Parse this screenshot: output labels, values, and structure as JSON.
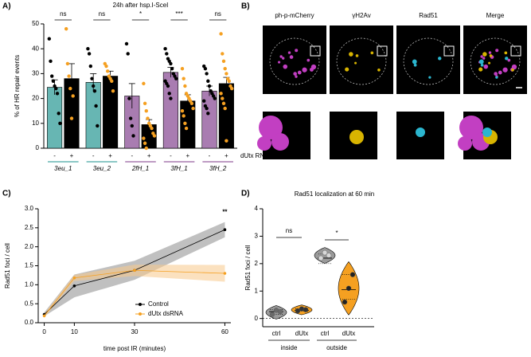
{
  "panel_labels": [
    "A)",
    "B)",
    "C)",
    "D)"
  ],
  "microscopy": {
    "channels": [
      {
        "label": "ph-p-mCherry",
        "color": "#c23fc2"
      },
      {
        "label": "γH2Av",
        "color": "#d8b400"
      },
      {
        "label": "Rad51",
        "color": "#2bb6cf"
      },
      {
        "label": "Merge",
        "color": "#333333"
      }
    ]
  },
  "chart_data": [
    {
      "type": "bar",
      "title": "24h after hsp.I-SceI",
      "y_label": "% of HR repair events",
      "categories": [
        "3eu_1",
        "3eu_2",
        "2fH_1",
        "3fH_1",
        "3fH_2"
      ],
      "series": [
        {
          "name": "-",
          "colors": [
            "#67b6b3",
            "#67b6b3",
            "#a97cb1",
            "#a97cb1",
            "#a97cb1"
          ],
          "point_color": "#000000",
          "values": [
            24.5,
            26.5,
            21,
            30.5,
            23
          ],
          "errors": [
            3,
            3.5,
            5,
            2,
            2
          ],
          "points": [
            [
              44,
              35,
              29,
              27,
              25,
              24,
              22,
              14,
              10
            ],
            [
              40,
              38,
              33,
              28,
              25,
              23,
              17,
              9
            ],
            [
              42,
              38,
              20,
              12,
              9,
              5
            ],
            [
              40,
              38,
              36,
              35,
              34,
              32,
              30,
              29,
              28,
              27,
              26,
              25,
              22,
              20
            ],
            [
              33,
              32,
              30,
              27,
              25,
              23,
              22,
              21,
              20,
              19,
              17,
              16,
              14
            ]
          ]
        },
        {
          "name": "+",
          "color": "#000000",
          "point_color": "#f5a021",
          "values": [
            28,
            29,
            9.5,
            19,
            26
          ],
          "errors": [
            6,
            2,
            2,
            2.5,
            2.5
          ],
          "points": [
            [
              48,
              34,
              29,
              24,
              12,
              21
            ],
            [
              34,
              33,
              31,
              29,
              28,
              27,
              23
            ],
            [
              26,
              18,
              15,
              12,
              10,
              9,
              8,
              6,
              5,
              4,
              2,
              0
            ],
            [
              32,
              28,
              25,
              22,
              21,
              20,
              19,
              18,
              16,
              15,
              13,
              10,
              8
            ],
            [
              46,
              38,
              35,
              32,
              30,
              28,
              27,
              25,
              24,
              22,
              20,
              18,
              16,
              3
            ]
          ]
        }
      ],
      "significance": [
        "ns",
        "ns",
        "*",
        "***",
        "ns"
      ],
      "legend_label": "dUtx RNAi",
      "ylim": [
        0,
        50
      ],
      "yticks": [
        0,
        10,
        20,
        30,
        40,
        50
      ]
    },
    {
      "type": "line",
      "x_label": "time post IR (minutes)",
      "y_label": "Rad51 foci / cell",
      "x": [
        0,
        10,
        30,
        60
      ],
      "series": [
        {
          "name": "Control",
          "color": "#000000",
          "band_color": "#8c8c8c",
          "values": [
            0.22,
            0.97,
            1.38,
            2.45
          ],
          "errors": [
            0.05,
            0.3,
            0.25,
            0.2
          ]
        },
        {
          "name": "dUtx dsRNA",
          "color": "#f5a021",
          "band_color": "#f7c98a",
          "values": [
            0.18,
            1.18,
            1.38,
            1.3
          ],
          "errors": [
            0.05,
            0.08,
            0.15,
            0.22
          ]
        }
      ],
      "annotation": "**",
      "xlim": [
        -2,
        62
      ],
      "xticks": [
        0,
        10,
        30,
        60
      ],
      "ylim": [
        0,
        3
      ],
      "yticks": [
        {
          "value": 0,
          "label": "0.0"
        },
        {
          "value": 0.5,
          "label": "0.5"
        },
        {
          "value": 1,
          "label": "1.0"
        },
        {
          "value": 1.5,
          "label": "1.5"
        },
        {
          "value": 2,
          "label": "2.0"
        },
        {
          "value": 2.5,
          "label": "2.5"
        },
        {
          "value": 3,
          "label": "3.0"
        }
      ]
    },
    {
      "type": "violin",
      "title": "Rad51 localization at 60 min",
      "y_label": "Rad51 foci / cell",
      "groups": [
        "inside",
        "outside"
      ],
      "categories": [
        "ctrl",
        "dUtx",
        "ctrl",
        "dUtx"
      ],
      "violins": [
        {
          "color": "#9a9a9a",
          "point_color": "#6a6a6a",
          "median": 0.25,
          "quartiles": [
            0.15,
            0.32
          ],
          "points": [
            0.15,
            0.3,
            0.25
          ]
        },
        {
          "color": "#f5a021",
          "point_color": "#333333",
          "median": 0.3,
          "quartiles": [
            0.27,
            0.35
          ],
          "points": [
            0.28,
            0.35,
            0.32
          ]
        },
        {
          "color": "#9a9a9a",
          "point_color": "#d8d8d8",
          "median": 2.2,
          "quartiles": [
            2.0,
            2.35
          ],
          "points": [
            2.2,
            2.4,
            2.3
          ]
        },
        {
          "color": "#f5a021",
          "point_color": "#222222",
          "median": 1.05,
          "quartiles": [
            0.7,
            1.6
          ],
          "points": [
            0.6,
            1.1,
            1.6
          ]
        }
      ],
      "significance": [
        "ns",
        "*"
      ],
      "ylim": [
        -0.3,
        4
      ],
      "yticks": [
        0,
        1,
        2,
        3,
        4
      ]
    }
  ]
}
